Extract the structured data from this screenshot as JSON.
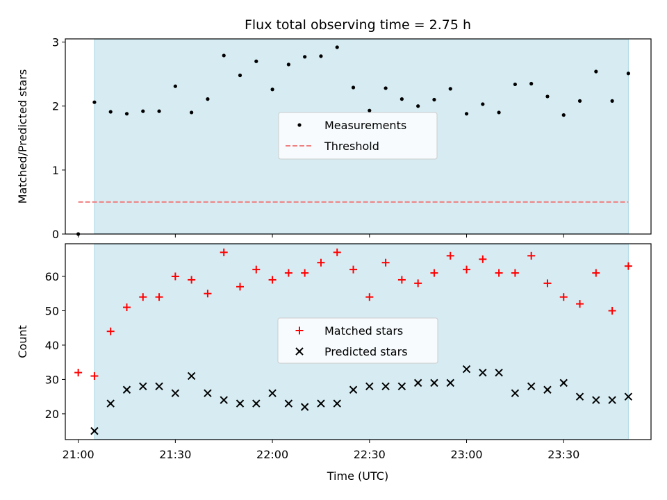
{
  "title": "Flux total observing time = 2.75 h",
  "xlabel": "Time (UTC)",
  "x_tick_labels": [
    "21:00",
    "21:30",
    "22:00",
    "22:30",
    "23:00",
    "23:30"
  ],
  "colors": {
    "shade": "#add8e6",
    "measurements": "#000000",
    "threshold": "#f08080",
    "matched": "#ff0000",
    "predicted": "#000000"
  },
  "chart_data": [
    {
      "type": "scatter",
      "panel": "top",
      "ylabel": "Matched/Predicted stars",
      "ylim": [
        0,
        3.05
      ],
      "yticks": [
        0,
        1,
        2,
        3
      ],
      "xlim": [
        "20:56",
        "23:57"
      ],
      "shaded_interval": [
        "21:05",
        "23:50"
      ],
      "legend": {
        "placement": "center",
        "entries": [
          "Measurements",
          "Threshold"
        ]
      },
      "series": [
        {
          "name": "Measurements",
          "marker": "dot",
          "x": [
            "21:00",
            "21:05",
            "21:10",
            "21:15",
            "21:20",
            "21:25",
            "21:30",
            "21:35",
            "21:40",
            "21:45",
            "21:50",
            "21:55",
            "22:00",
            "22:05",
            "22:10",
            "22:15",
            "22:20",
            "22:25",
            "22:30",
            "22:35",
            "22:40",
            "22:45",
            "22:50",
            "22:55",
            "23:00",
            "23:05",
            "23:10",
            "23:15",
            "23:20",
            "23:25",
            "23:30",
            "23:35",
            "23:40",
            "23:45",
            "23:50"
          ],
          "y": [
            0.0,
            2.06,
            1.91,
            1.88,
            1.92,
            1.92,
            2.31,
            1.9,
            2.11,
            2.79,
            2.48,
            2.7,
            2.26,
            2.65,
            2.77,
            2.78,
            2.92,
            2.29,
            1.93,
            2.28,
            2.11,
            2.0,
            2.1,
            2.27,
            1.88,
            2.03,
            1.9,
            2.34,
            2.35,
            2.15,
            1.86,
            2.08,
            2.54,
            2.08,
            2.51
          ]
        },
        {
          "name": "Threshold",
          "style": "dashed",
          "x": [
            "21:00",
            "23:50"
          ],
          "y": [
            0.5,
            0.5
          ]
        }
      ]
    },
    {
      "type": "scatter",
      "panel": "bottom",
      "ylabel": "Count",
      "ylim": [
        12.5,
        69.5
      ],
      "yticks": [
        20,
        30,
        40,
        50,
        60
      ],
      "xlim": [
        "20:56",
        "23:57"
      ],
      "shaded_interval": [
        "21:05",
        "23:50"
      ],
      "legend": {
        "placement": "center",
        "entries": [
          "Matched stars",
          "Predicted stars"
        ]
      },
      "series": [
        {
          "name": "Matched stars",
          "marker": "plus",
          "x": [
            "21:00",
            "21:05",
            "21:10",
            "21:15",
            "21:20",
            "21:25",
            "21:30",
            "21:35",
            "21:40",
            "21:45",
            "21:50",
            "21:55",
            "22:00",
            "22:05",
            "22:10",
            "22:15",
            "22:20",
            "22:25",
            "22:30",
            "22:35",
            "22:40",
            "22:45",
            "22:50",
            "22:55",
            "23:00",
            "23:05",
            "23:10",
            "23:15",
            "23:20",
            "23:25",
            "23:30",
            "23:35",
            "23:40",
            "23:45",
            "23:50"
          ],
          "y": [
            32,
            31,
            44,
            51,
            54,
            54,
            60,
            59,
            55,
            67,
            57,
            62,
            59,
            61,
            61,
            64,
            67,
            62,
            54,
            64,
            59,
            58,
            61,
            66,
            62,
            65,
            61,
            61,
            66,
            58,
            54,
            52,
            61,
            50,
            63
          ]
        },
        {
          "name": "Predicted stars",
          "marker": "x",
          "x": [
            "21:05",
            "21:10",
            "21:15",
            "21:20",
            "21:25",
            "21:30",
            "21:35",
            "21:40",
            "21:45",
            "21:50",
            "21:55",
            "22:00",
            "22:05",
            "22:10",
            "22:15",
            "22:20",
            "22:25",
            "22:30",
            "22:35",
            "22:40",
            "22:45",
            "22:50",
            "22:55",
            "23:00",
            "23:05",
            "23:10",
            "23:15",
            "23:20",
            "23:25",
            "23:30",
            "23:35",
            "23:40",
            "23:45",
            "23:50"
          ],
          "y": [
            15,
            23,
            27,
            28,
            28,
            26,
            31,
            26,
            24,
            23,
            23,
            26,
            23,
            22,
            23,
            23,
            27,
            28,
            28,
            28,
            29,
            29,
            29,
            33,
            32,
            32,
            26,
            28,
            27,
            29,
            25,
            24,
            24,
            25
          ]
        }
      ]
    }
  ]
}
